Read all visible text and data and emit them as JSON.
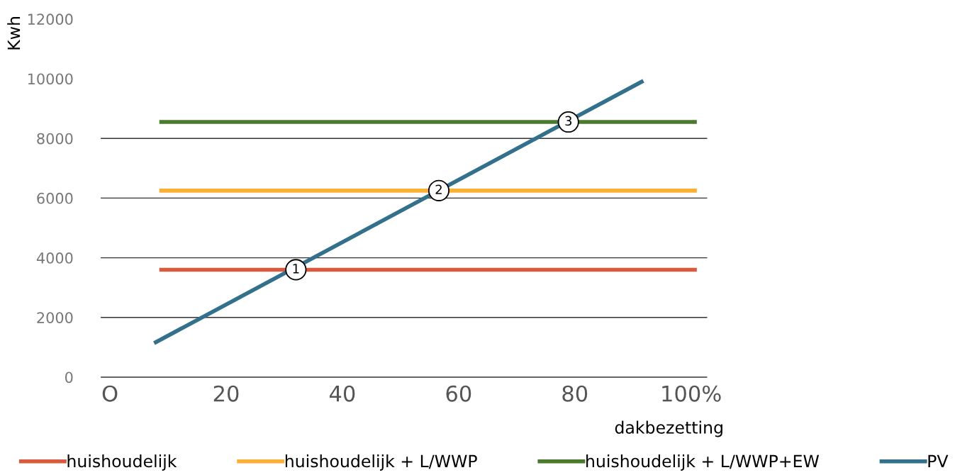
{
  "chart_data": {
    "type": "line",
    "xlabel": "dakbezetting",
    "ylabel": "Kwh",
    "xlim": [
      -1.5,
      102.7
    ],
    "ylim": [
      0,
      12000
    ],
    "xticks": [
      {
        "value": 0,
        "label": "O"
      },
      20,
      40,
      60,
      80,
      {
        "value": 100,
        "label": "100%"
      }
    ],
    "yticks": [
      0,
      2000,
      4000,
      6000,
      8000,
      10000,
      12000
    ],
    "grid": false,
    "legend": "bottom",
    "marker": "none",
    "line_style": "solid",
    "series": [
      {
        "name": "huishoudelijk",
        "color": "#d95b3f",
        "x": [
          8.5,
          101
        ],
        "values": [
          3600,
          3600
        ]
      },
      {
        "name": "huishoudelijk + L/WWP",
        "color": "#fbb034",
        "x": [
          8.5,
          101
        ],
        "values": [
          6250,
          6250
        ]
      },
      {
        "name": "huishoudelijk + L/WWP+EW",
        "color": "#4a7a2c",
        "x": [
          8.5,
          101
        ],
        "values": [
          8550,
          8550
        ]
      },
      {
        "name": "PV",
        "color": "#33708c",
        "x": [
          7.6,
          91.8
        ],
        "values": [
          1140,
          9930
        ]
      }
    ],
    "ref_lines": [
      {
        "axis": "y",
        "value": 2000,
        "color": "#333333"
      },
      {
        "axis": "y",
        "value": 4000,
        "color": "#333333"
      },
      {
        "axis": "y",
        "value": 6000,
        "color": "#333333"
      },
      {
        "axis": "y",
        "value": 8000,
        "color": "#333333"
      }
    ],
    "annotations": [
      {
        "text": "1",
        "x": 32,
        "y": 3600
      },
      {
        "text": "2",
        "x": 56.6,
        "y": 6250
      },
      {
        "text": "3",
        "x": 78.9,
        "y": 8550
      }
    ]
  }
}
